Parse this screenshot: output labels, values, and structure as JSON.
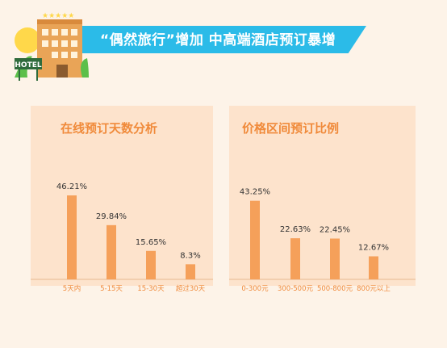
{
  "header": {
    "title": "“偶然旅行”增加 中高端酒店预订暴增"
  },
  "hotel_icon": {
    "sign": "HOTEL"
  },
  "colors": {
    "banner": "#2bbbe8",
    "bar": "#f5a05a",
    "panel": "#fde3cc",
    "background": "#fdf3e8",
    "title": "#f08a3a"
  },
  "chart_data": [
    {
      "type": "bar",
      "title": "在线预订天数分析",
      "categories": [
        "5天内",
        "5-15天",
        "15-30天",
        "超过30天"
      ],
      "values": [
        46.21,
        29.84,
        15.65,
        8.3
      ],
      "value_labels": [
        "46.21%",
        "29.84%",
        "15.65%",
        "8.3%"
      ],
      "unit": "%",
      "ylim": [
        0,
        60
      ],
      "grid": false
    },
    {
      "type": "bar",
      "title": "价格区间预订比例",
      "categories": [
        "0-300元",
        "300-500元",
        "500-800元",
        "800元以上"
      ],
      "values": [
        43.25,
        22.63,
        22.45,
        12.67
      ],
      "value_labels": [
        "43.25%",
        "22.63%",
        "22.45%",
        "12.67%"
      ],
      "unit": "%",
      "ylim": [
        0,
        60
      ],
      "grid": false
    }
  ]
}
